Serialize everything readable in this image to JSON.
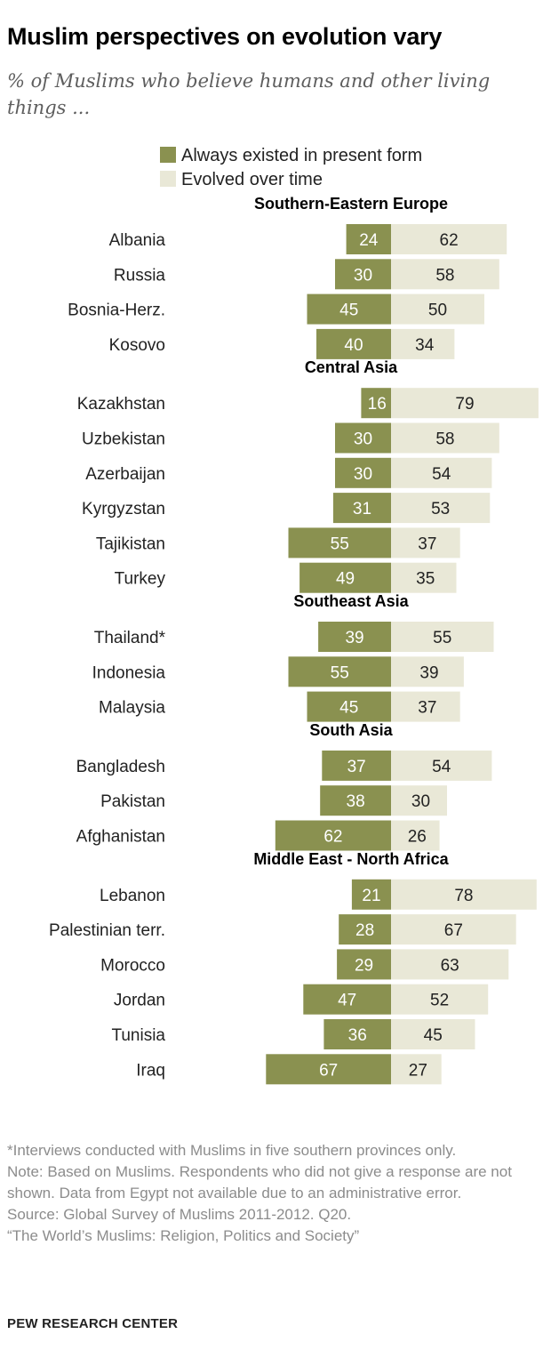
{
  "title": "Muslim perspectives on evolution vary",
  "subtitle": "% of Muslims who believe humans and other living things ...",
  "colors": {
    "always": "#8a9150",
    "evolved": "#e9e8d7",
    "label": "#222222",
    "group": "#000000"
  },
  "chart_data": {
    "type": "bar",
    "orientation": "horizontal-diverging",
    "series": [
      {
        "name": "Always existed in present form",
        "key": "always"
      },
      {
        "name": "Evolved over time",
        "key": "evolved"
      }
    ],
    "xlim": [
      0,
      100
    ],
    "groups": [
      {
        "name": "Southern-Eastern Europe",
        "rows": [
          {
            "country": "Albania",
            "always": 24,
            "evolved": 62
          },
          {
            "country": "Russia",
            "always": 30,
            "evolved": 58
          },
          {
            "country": "Bosnia-Herz.",
            "always": 45,
            "evolved": 50
          },
          {
            "country": "Kosovo",
            "always": 40,
            "evolved": 34
          }
        ]
      },
      {
        "name": "Central Asia",
        "rows": [
          {
            "country": "Kazakhstan",
            "always": 16,
            "evolved": 79
          },
          {
            "country": "Uzbekistan",
            "always": 30,
            "evolved": 58
          },
          {
            "country": "Azerbaijan",
            "always": 30,
            "evolved": 54
          },
          {
            "country": "Kyrgyzstan",
            "always": 31,
            "evolved": 53
          },
          {
            "country": "Tajikistan",
            "always": 55,
            "evolved": 37
          },
          {
            "country": "Turkey",
            "always": 49,
            "evolved": 35
          }
        ]
      },
      {
        "name": "Southeast Asia",
        "rows": [
          {
            "country": "Thailand*",
            "always": 39,
            "evolved": 55
          },
          {
            "country": "Indonesia",
            "always": 55,
            "evolved": 39
          },
          {
            "country": "Malaysia",
            "always": 45,
            "evolved": 37
          }
        ]
      },
      {
        "name": "South Asia",
        "rows": [
          {
            "country": "Bangladesh",
            "always": 37,
            "evolved": 54
          },
          {
            "country": "Pakistan",
            "always": 38,
            "evolved": 30
          },
          {
            "country": "Afghanistan",
            "always": 62,
            "evolved": 26
          }
        ]
      },
      {
        "name": "Middle East - North Africa",
        "rows": [
          {
            "country": "Lebanon",
            "always": 21,
            "evolved": 78
          },
          {
            "country": "Palestinian terr.",
            "always": 28,
            "evolved": 67
          },
          {
            "country": "Morocco",
            "always": 29,
            "evolved": 63
          },
          {
            "country": "Jordan",
            "always": 47,
            "evolved": 52
          },
          {
            "country": "Tunisia",
            "always": 36,
            "evolved": 45
          },
          {
            "country": "Iraq",
            "always": 67,
            "evolved": 27
          }
        ]
      }
    ]
  },
  "footer": {
    "footnote": "*Interviews conducted with Muslims in five southern provinces only.",
    "note": "Note: Based on Muslims. Respondents who did not give a response are not shown. Data from Egypt not available due to an administrative error.",
    "source": "Source: Global Survey of Muslims 2011-2012. Q20.",
    "report": "“The World’s Muslims: Religion, Politics and Society”",
    "brand": "PEW RESEARCH CENTER"
  }
}
